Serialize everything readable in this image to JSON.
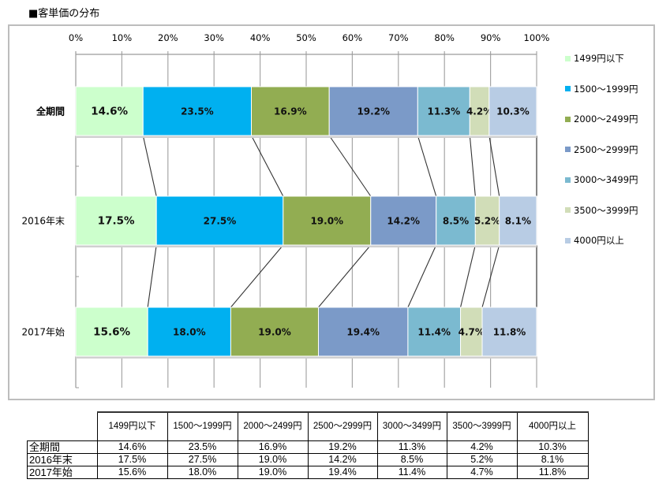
{
  "title": "■客単価の分布",
  "chart_data": {
    "type": "bar",
    "orientation": "horizontal",
    "stacked": "percent",
    "title": "客単価の分布",
    "xlim": [
      0,
      100
    ],
    "x_ticks": [
      "0%",
      "10%",
      "20%",
      "30%",
      "40%",
      "50%",
      "60%",
      "70%",
      "80%",
      "90%",
      "100%"
    ],
    "x_axis_position": "top",
    "grid": true,
    "series_lines": true,
    "legend_position": "right",
    "categories": [
      "全期間",
      "2016年末",
      "2017年始"
    ],
    "series": [
      {
        "name": "1499円以下",
        "color": "#ccffcc",
        "values": [
          14.6,
          17.5,
          15.6
        ],
        "labels": [
          "14.6%",
          "17.5%",
          "15.6%"
        ]
      },
      {
        "name": "1500〜1999円",
        "color": "#00b0f0",
        "values": [
          23.5,
          27.5,
          18.0
        ],
        "labels": [
          "23.5%",
          "27.5%",
          "18.0%"
        ]
      },
      {
        "name": "2000〜2499円",
        "color": "#92ad52",
        "values": [
          16.9,
          19.0,
          19.0
        ],
        "labels": [
          "16.9%",
          "19.0%",
          "19.0%"
        ]
      },
      {
        "name": "2500〜2999円",
        "color": "#7b9ac8",
        "values": [
          19.2,
          14.2,
          19.4
        ],
        "labels": [
          "19.2%",
          "14.2%",
          "19.4%"
        ]
      },
      {
        "name": "3000〜3499円",
        "color": "#7bbad0",
        "values": [
          11.3,
          8.5,
          11.4
        ],
        "labels": [
          "11.3%",
          "8.5%",
          "11.4%"
        ]
      },
      {
        "name": "3500〜3999円",
        "color": "#d1ddb8",
        "values": [
          4.2,
          5.2,
          4.7
        ],
        "labels": [
          "4.2%",
          "5.2%",
          "4.7%"
        ]
      },
      {
        "name": "4000円以上",
        "color": "#b8cce4",
        "values": [
          10.3,
          8.1,
          11.8
        ],
        "labels": [
          "10.3%",
          "8.1%",
          "11.8%"
        ]
      }
    ]
  },
  "table": {
    "headers": [
      "1499円以下",
      "1500〜1999円",
      "2000〜2499円",
      "2500〜2999円",
      "3000〜3499円",
      "3500〜3999円",
      "4000円以上"
    ],
    "rows": [
      {
        "label": "全期間",
        "cells": [
          "14.6%",
          "23.5%",
          "16.9%",
          "19.2%",
          "11.3%",
          "4.2%",
          "10.3%"
        ]
      },
      {
        "label": "2016年末",
        "cells": [
          "17.5%",
          "27.5%",
          "19.0%",
          "14.2%",
          "8.5%",
          "5.2%",
          "8.1%"
        ]
      },
      {
        "label": "2017年始",
        "cells": [
          "15.6%",
          "18.0%",
          "19.0%",
          "19.4%",
          "11.4%",
          "4.7%",
          "11.8%"
        ]
      }
    ]
  }
}
